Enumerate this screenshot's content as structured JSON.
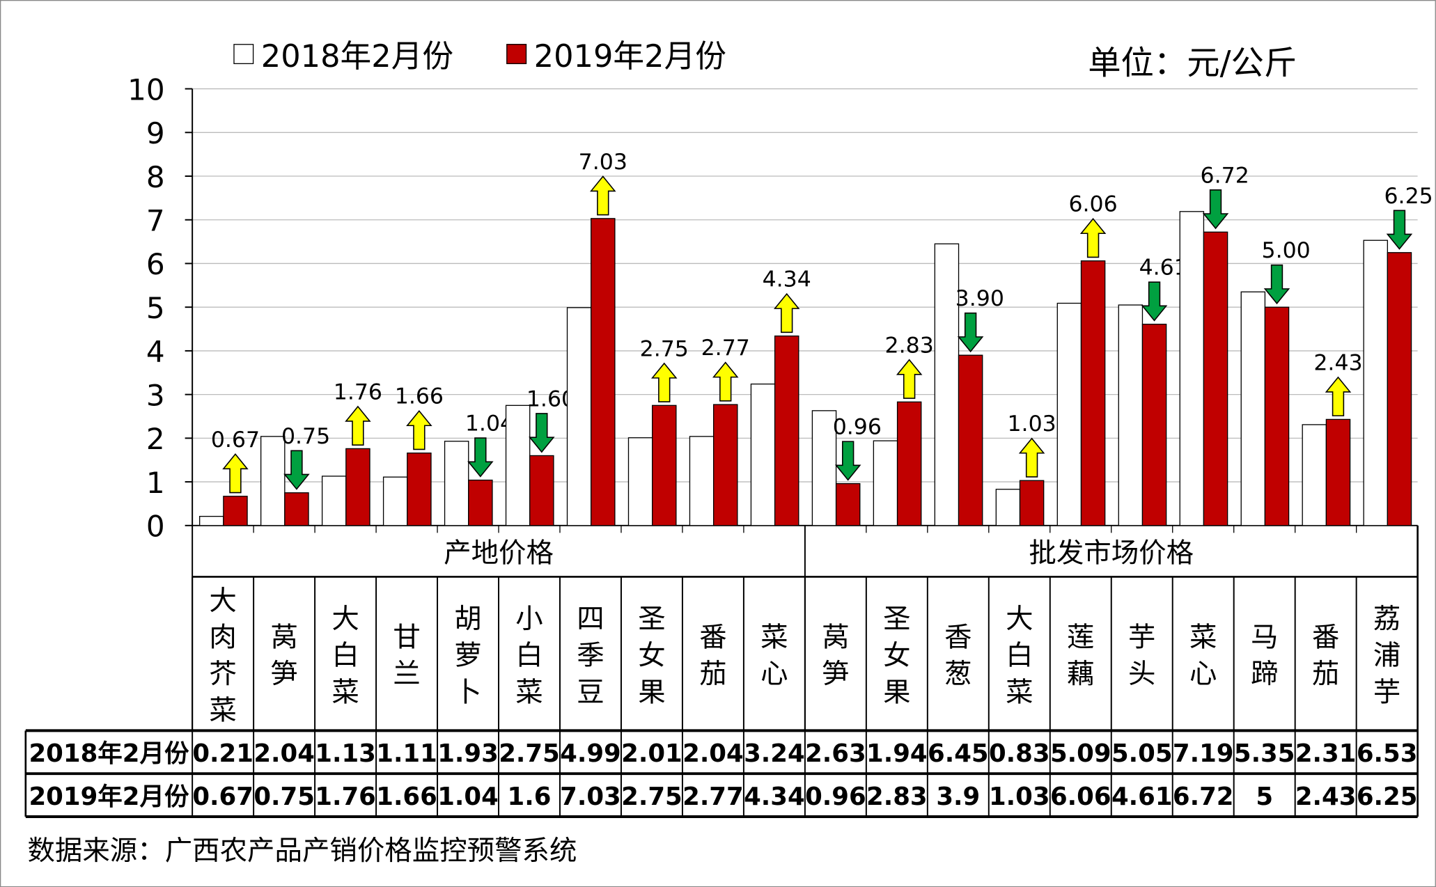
{
  "chart_data": {
    "type": "bar",
    "unit": "单位：元/公斤",
    "ylim": [
      0,
      10
    ],
    "yticks": [
      0,
      1,
      2,
      3,
      4,
      5,
      6,
      7,
      8,
      9,
      10
    ],
    "grid": true,
    "legend_position": "top-left",
    "groups": [
      {
        "label": "产地价格",
        "count": 10
      },
      {
        "label": "批发市场价格",
        "count": 10
      }
    ],
    "categories": [
      "大肉芥菜",
      "莴笋",
      "大白菜",
      "甘兰",
      "胡萝卜",
      "小白菜",
      "四季豆",
      "圣女果",
      "番茄",
      "菜心",
      "莴笋",
      "圣女果",
      "香葱",
      "大白菜",
      "莲藕",
      "芋头",
      "菜心",
      "马蹄",
      "番茄",
      "荔浦芋"
    ],
    "series": [
      {
        "name": "2018年2月份",
        "color": "#ffffff",
        "values": [
          0.21,
          2.04,
          1.13,
          1.11,
          1.93,
          2.75,
          4.99,
          2.01,
          2.04,
          3.24,
          2.63,
          1.94,
          6.45,
          0.83,
          5.09,
          5.05,
          7.19,
          5.35,
          2.31,
          6.53
        ],
        "labels": [
          "0.21",
          "2.04",
          "1.13",
          "1.11",
          "1.93",
          "2.75",
          "4.99",
          "2.01",
          "2.04",
          "3.24",
          "2.63",
          "1.94",
          "6.45",
          "0.83",
          "5.09",
          "5.05",
          "7.19",
          "5.35",
          "2.31",
          "6.53"
        ]
      },
      {
        "name": "2019年2月份",
        "color": "#c00000",
        "values": [
          0.67,
          0.75,
          1.76,
          1.66,
          1.04,
          1.6,
          7.03,
          2.75,
          2.77,
          4.34,
          0.96,
          2.83,
          3.9,
          1.03,
          6.06,
          4.61,
          6.72,
          5,
          2.43,
          6.25
        ],
        "labels": [
          "0.67",
          "0.75",
          "1.76",
          "1.66",
          "1.04",
          "1.6",
          "7.03",
          "2.75",
          "2.77",
          "4.34",
          "0.96",
          "2.83",
          "3.9",
          "1.03",
          "6.06",
          "4.61",
          "6.72",
          "5",
          "2.43",
          "6.25"
        ]
      }
    ],
    "data_labels": [
      "0.67",
      "0.75",
      "1.76",
      "1.66",
      "1.04",
      "1.60",
      "7.03",
      "2.75",
      "2.77",
      "4.34",
      "0.96",
      "2.83",
      "3.90",
      "1.03",
      "6.06",
      "4.61",
      "6.72",
      "5.00",
      "2.43",
      "6.25"
    ],
    "up_color": "#ffff00",
    "down_color": "#00a040"
  },
  "source": "数据来源：广西农产品产销价格监控预警系统"
}
